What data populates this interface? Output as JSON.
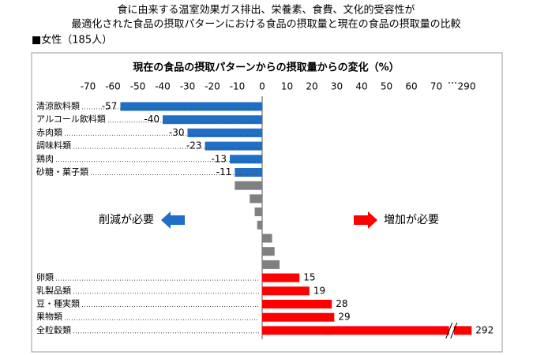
{
  "chart_data": {
    "type": "hbar",
    "title": "食に由来する温室効果ガス排出、栄養素、食費、文化的受容性が",
    "subtitle": "最適化された食品の摂取パターンにおける食品の摂取量と現在の食品の摂取量の比較",
    "group_label": "■女性（185人）",
    "axis_title": "現在の食品の摂取パターンからの摂取量からの変化（%）",
    "categories": [
      "清涼飲料類",
      "アルコール飲料類",
      "赤肉類",
      "調味料類",
      "鶏肉",
      "砂糖・菓子類",
      null,
      null,
      null,
      null,
      null,
      null,
      null,
      "卵類",
      "乳製品類",
      "豆・種実類",
      "果物類",
      "全粒穀類"
    ],
    "values": [
      -57,
      -40,
      -30,
      -23,
      -13,
      -11,
      -11,
      -5,
      -3,
      -2,
      4,
      5,
      7,
      15,
      19,
      28,
      29,
      292
    ],
    "value_labels": [
      -57,
      -40,
      -30,
      -23,
      -13,
      -11,
      null,
      null,
      null,
      null,
      null,
      null,
      null,
      15,
      19,
      28,
      29,
      292
    ],
    "colors": [
      "#1f6fc6",
      "#1f6fc6",
      "#1f6fc6",
      "#1f6fc6",
      "#1f6fc6",
      "#1f6fc6",
      "#808080",
      "#808080",
      "#808080",
      "#808080",
      "#808080",
      "#808080",
      "#808080",
      "#ff0000",
      "#ff0000",
      "#ff0000",
      "#ff0000",
      "#ff0000"
    ],
    "xlim": [
      -70,
      290
    ],
    "xticks": [
      -70,
      -60,
      -50,
      -40,
      -30,
      -20,
      -10,
      0,
      10,
      20,
      30,
      40,
      50,
      60,
      70,
      290
    ],
    "x_break": [
      75,
      285
    ],
    "annotations": [
      {
        "text": "削減が必要",
        "color": "#1f6fc6"
      },
      {
        "text": "増加が必要",
        "color": "#ff0000"
      }
    ]
  }
}
